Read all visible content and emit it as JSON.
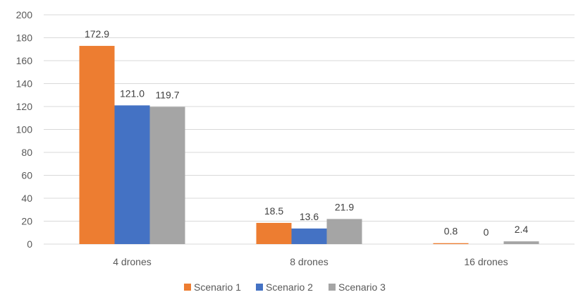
{
  "chart_data": {
    "type": "bar",
    "categories": [
      "4 drones",
      "8 drones",
      "16 drones"
    ],
    "series": [
      {
        "name": "Scenario 1",
        "values": [
          172.9,
          18.5,
          0.8
        ],
        "labels": [
          "172.9",
          "18.5",
          "0.8"
        ],
        "color": "#ED7D31"
      },
      {
        "name": "Scenario 2",
        "values": [
          121.0,
          13.6,
          0
        ],
        "labels": [
          "121.0",
          "13.6",
          "0"
        ],
        "color": "#4472C4"
      },
      {
        "name": "Scenario 3",
        "values": [
          119.7,
          21.9,
          2.4
        ],
        "labels": [
          "119.7",
          "21.9",
          "2.4"
        ],
        "color": "#A5A5A5"
      }
    ],
    "y_ticks": [
      "0",
      "20",
      "40",
      "60",
      "80",
      "100",
      "120",
      "140",
      "160",
      "180",
      "200"
    ],
    "ylim": [
      0,
      200
    ],
    "grid": true,
    "legend_position": "bottom",
    "title": "",
    "xlabel": "",
    "ylabel": ""
  }
}
